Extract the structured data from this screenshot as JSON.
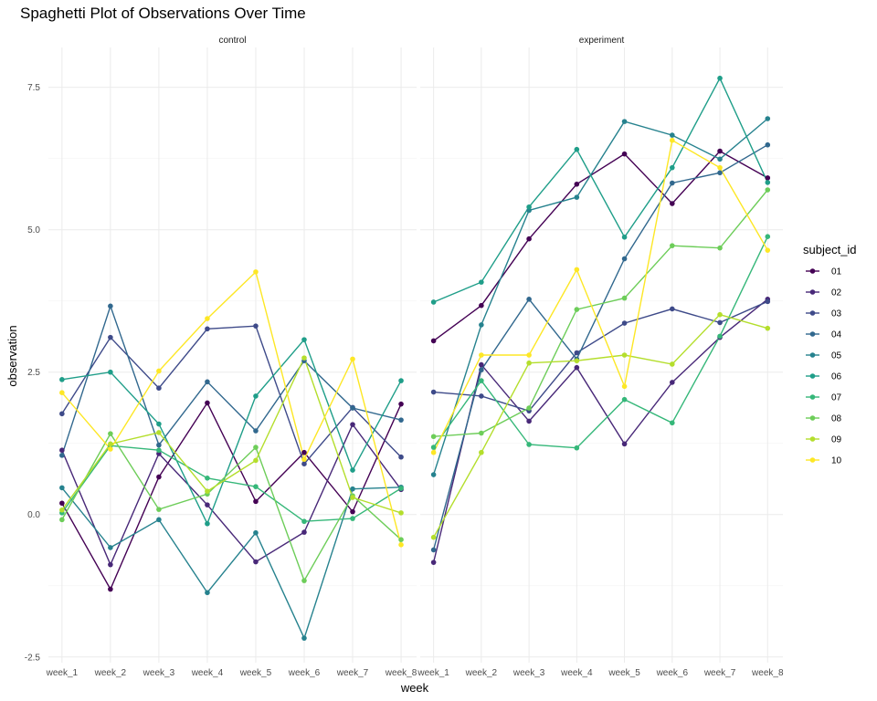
{
  "chart_data": {
    "type": "line",
    "title": "Spaghetti Plot of Observations Over Time",
    "xlabel": "week",
    "ylabel": "observation",
    "legend_title": "subject_id",
    "legend_position": "right",
    "grid": true,
    "categories": [
      "week_1",
      "week_2",
      "week_3",
      "week_4",
      "week_5",
      "week_6",
      "week_7",
      "week_8"
    ],
    "ylim": [
      -2.6,
      8.2
    ],
    "yticks": [
      -2.5,
      0.0,
      2.5,
      5.0,
      7.5
    ],
    "ytick_labels": [
      "-2.5",
      "0.0",
      "2.5",
      "5.0",
      "7.5"
    ],
    "colors": {
      "01": "#440154",
      "02": "#482878",
      "03": "#3e4a89",
      "04": "#31688e",
      "05": "#26828e",
      "06": "#1f9e89",
      "07": "#35b779",
      "08": "#6dcd59",
      "09": "#b4de2c",
      "10": "#fde725"
    },
    "panels": [
      {
        "name": "control",
        "series": [
          {
            "name": "01",
            "values": [
              0.2,
              -1.31,
              0.66,
              1.96,
              0.23,
              1.09,
              0.05,
              1.94
            ]
          },
          {
            "name": "02",
            "values": [
              1.13,
              -0.88,
              1.07,
              0.17,
              -0.83,
              -0.31,
              1.58,
              0.44
            ]
          },
          {
            "name": "03",
            "values": [
              1.77,
              3.11,
              2.22,
              3.26,
              3.31,
              0.89,
              1.88,
              1.01
            ]
          },
          {
            "name": "04",
            "values": [
              1.04,
              3.66,
              1.22,
              2.33,
              1.47,
              2.7,
              1.87,
              1.66
            ]
          },
          {
            "name": "05",
            "values": [
              0.47,
              -0.58,
              -0.09,
              -1.37,
              -0.32,
              -2.17,
              0.45,
              0.48
            ]
          },
          {
            "name": "06",
            "values": [
              2.37,
              2.5,
              1.59,
              -0.16,
              2.08,
              3.07,
              0.78,
              2.35
            ]
          },
          {
            "name": "07",
            "values": [
              0.03,
              1.21,
              1.13,
              0.64,
              0.49,
              -0.12,
              -0.07,
              0.46
            ]
          },
          {
            "name": "08",
            "values": [
              -0.09,
              1.42,
              0.09,
              0.36,
              1.18,
              -1.16,
              0.33,
              -0.44
            ]
          },
          {
            "name": "09",
            "values": [
              0.08,
              1.24,
              1.44,
              0.41,
              0.95,
              2.75,
              0.3,
              0.03
            ]
          },
          {
            "name": "10",
            "values": [
              2.14,
              1.15,
              2.52,
              3.44,
              4.26,
              0.97,
              2.73,
              -0.53
            ]
          }
        ]
      },
      {
        "name": "experiment",
        "series": [
          {
            "name": "01",
            "values": [
              3.05,
              3.67,
              4.84,
              5.8,
              6.33,
              5.46,
              6.38,
              5.91
            ]
          },
          {
            "name": "02",
            "values": [
              -0.84,
              2.63,
              1.64,
              2.58,
              1.24,
              2.32,
              3.11,
              3.78
            ]
          },
          {
            "name": "03",
            "values": [
              2.15,
              2.08,
              1.82,
              2.84,
              3.36,
              3.61,
              3.37,
              3.74
            ]
          },
          {
            "name": "04",
            "values": [
              -0.62,
              2.54,
              3.78,
              2.73,
              4.49,
              5.82,
              6.0,
              6.49
            ]
          },
          {
            "name": "05",
            "values": [
              0.7,
              3.33,
              5.34,
              5.57,
              6.9,
              6.66,
              6.24,
              6.95
            ]
          },
          {
            "name": "06",
            "values": [
              3.73,
              4.08,
              5.4,
              6.41,
              4.87,
              6.09,
              7.66,
              5.83
            ]
          },
          {
            "name": "07",
            "values": [
              1.18,
              2.35,
              1.23,
              1.17,
              2.02,
              1.61,
              3.13,
              4.88
            ]
          },
          {
            "name": "08",
            "values": [
              1.37,
              1.43,
              1.87,
              3.6,
              3.8,
              4.72,
              4.68,
              5.7
            ]
          },
          {
            "name": "09",
            "values": [
              -0.4,
              1.09,
              2.66,
              2.7,
              2.8,
              2.64,
              3.51,
              3.27
            ]
          },
          {
            "name": "10",
            "values": [
              1.09,
              2.8,
              2.8,
              4.3,
              2.25,
              6.57,
              6.09,
              4.64
            ]
          }
        ]
      }
    ]
  }
}
